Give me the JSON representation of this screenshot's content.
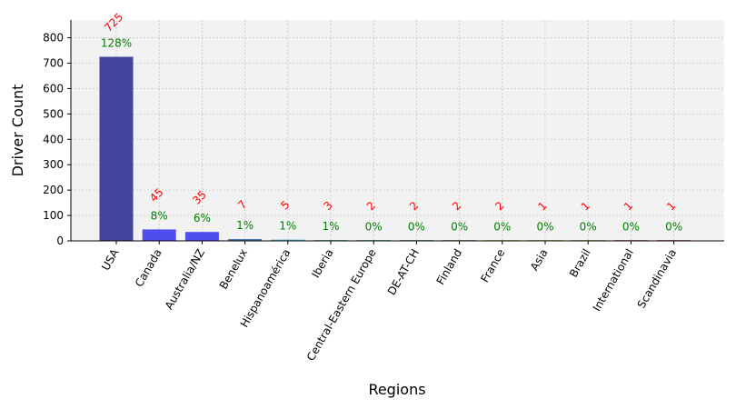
{
  "chart_data": {
    "type": "bar",
    "title": "",
    "xlabel": "Regions",
    "ylabel": "Driver Count",
    "ylim": [
      0,
      870
    ],
    "yticks": [
      0,
      100,
      200,
      300,
      400,
      500,
      600,
      700,
      800
    ],
    "grid": true,
    "categories": [
      "USA",
      "Canada",
      "Australia/NZ",
      "Benelux",
      "Hispanoamérica",
      "Iberia",
      "Central-Eastern Europe",
      "DE-AT-CH",
      "Finland",
      "France",
      "Asia",
      "Brazil",
      "International",
      "Scandinavia"
    ],
    "values": [
      725,
      45,
      35,
      7,
      5,
      3,
      2,
      2,
      2,
      2,
      1,
      1,
      1,
      1
    ],
    "count_labels": [
      "725",
      "45",
      "35",
      "7",
      "5",
      "3",
      "2",
      "2",
      "2",
      "2",
      "1",
      "1",
      "1",
      "1"
    ],
    "percent_labels": [
      "128%",
      "8%",
      "6%",
      "1%",
      "1%",
      "1%",
      "0%",
      "0%",
      "0%",
      "0%",
      "0%",
      "0%",
      "0%",
      "0%"
    ],
    "bar_colors": [
      "#3a3a9a",
      "#4444ee",
      "#4444ee",
      "#3a6ea8",
      "#4ab3c8",
      "#3fa9a0",
      "#2e8f7a",
      "#2e7a3e",
      "#3f7a2e",
      "#a7a726",
      "#b2a030",
      "#a08030",
      "#9c3a2c",
      "#9a2a2a"
    ],
    "count_label_color": "#ff0000",
    "percent_label_color": "#008000"
  }
}
